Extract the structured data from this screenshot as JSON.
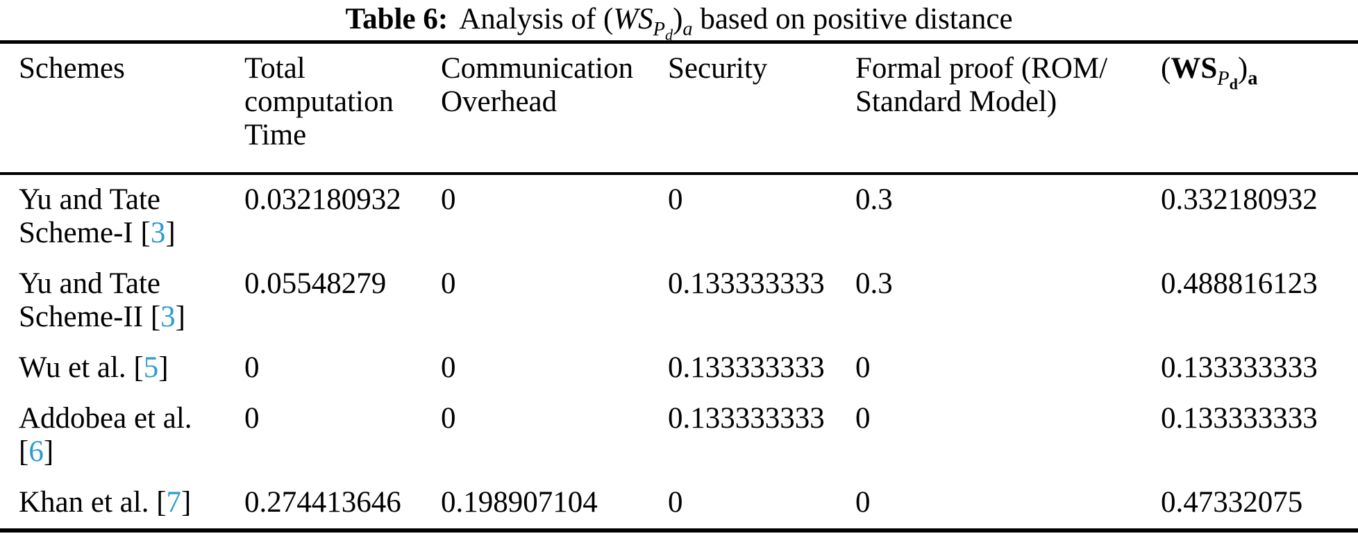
{
  "punct": {
    "lb": "[",
    "rb": "]"
  },
  "title": {
    "label": "Table 6:",
    "prefix": "Analysis of",
    "suffix": "based on positive distance"
  },
  "formula": {
    "open": "(",
    "ws": "WS",
    "p": "P",
    "d": "d",
    "close": ")",
    "a": "a"
  },
  "colors": {
    "citation_blue": "#2b9ad3",
    "text": "#000000",
    "rule": "#000000"
  },
  "table": {
    "headers": {
      "schemes": "Schemes",
      "total_computation_time": "Total computation Time",
      "communication_overhead": "Communication Overhead",
      "security": "Security",
      "formal_proof_line1": "Formal proof (ROM/",
      "formal_proof_line2": "Standard Model)"
    },
    "rows": [
      {
        "scheme": "Yu and Tate Scheme-I",
        "cite": "3",
        "total_computation_time": "0.032180932",
        "communication_overhead": "0",
        "security": "0",
        "formal_proof": "0.3",
        "ws": "0.332180932"
      },
      {
        "scheme": "Yu and Tate Scheme-II",
        "cite": "3",
        "total_computation_time": "0.05548279",
        "communication_overhead": "0",
        "security": "0.133333333",
        "formal_proof": "0.3",
        "ws": "0.488816123"
      },
      {
        "scheme": "Wu et al.",
        "cite": "5",
        "total_computation_time": "0",
        "communication_overhead": "0",
        "security": "0.133333333",
        "formal_proof": "0",
        "ws": "0.133333333"
      },
      {
        "scheme": "Addobea et al.",
        "cite": "6",
        "total_computation_time": "0",
        "communication_overhead": "0",
        "security": "0.133333333",
        "formal_proof": "0",
        "ws": "0.133333333"
      },
      {
        "scheme": "Khan et al.",
        "cite": "7",
        "total_computation_time": "0.274413646",
        "communication_overhead": "0.198907104",
        "security": "0",
        "formal_proof": "0",
        "ws": "0.47332075"
      }
    ]
  }
}
